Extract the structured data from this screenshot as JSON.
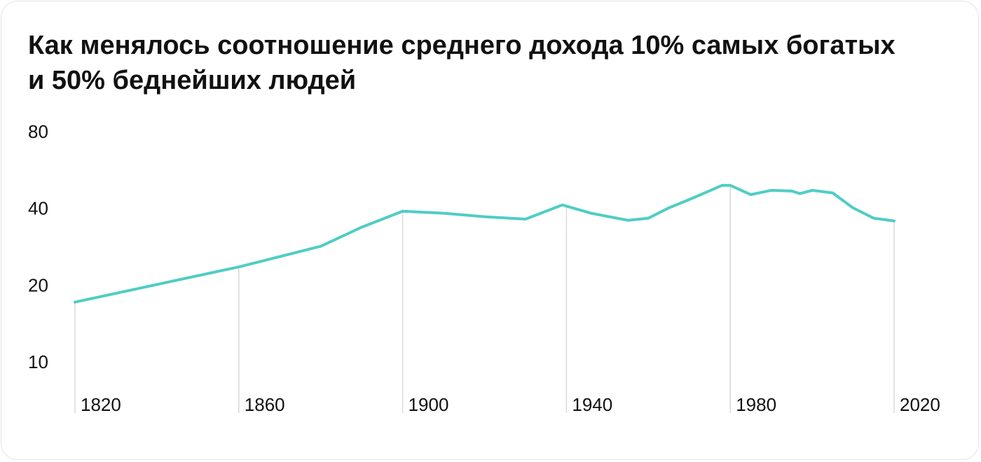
{
  "chart_data": {
    "type": "line",
    "title": "Как менялось соотношение среднего дохода 10% самых богатых и 50% беднейших людей",
    "x": [
      1820,
      1840,
      1860,
      1880,
      1890,
      1900,
      1910,
      1920,
      1930,
      1939,
      1946,
      1955,
      1960,
      1965,
      1970,
      1978,
      1980,
      1985,
      1990,
      1995,
      1997,
      2000,
      2005,
      2010,
      2015,
      2020
    ],
    "series": [
      {
        "color": "#4fcdc4",
        "values": [
          17.4,
          20.4,
          23.9,
          28.8,
          34.2,
          39.5,
          38.8,
          37.6,
          36.8,
          41.8,
          38.8,
          36.4,
          37.1,
          40.7,
          43.9,
          49.9,
          49.9,
          45.9,
          47.7,
          47.4,
          46.3,
          47.7,
          46.6,
          40.7,
          37.1,
          36.2
        ]
      }
    ],
    "xlim": [
      1820,
      2020
    ],
    "xticks": [
      1820,
      1860,
      1900,
      1940,
      1980,
      2020
    ],
    "ylim": [
      6.4,
      80
    ],
    "yticks": [
      10,
      20,
      40,
      80
    ],
    "log_y": true,
    "grid": true
  }
}
